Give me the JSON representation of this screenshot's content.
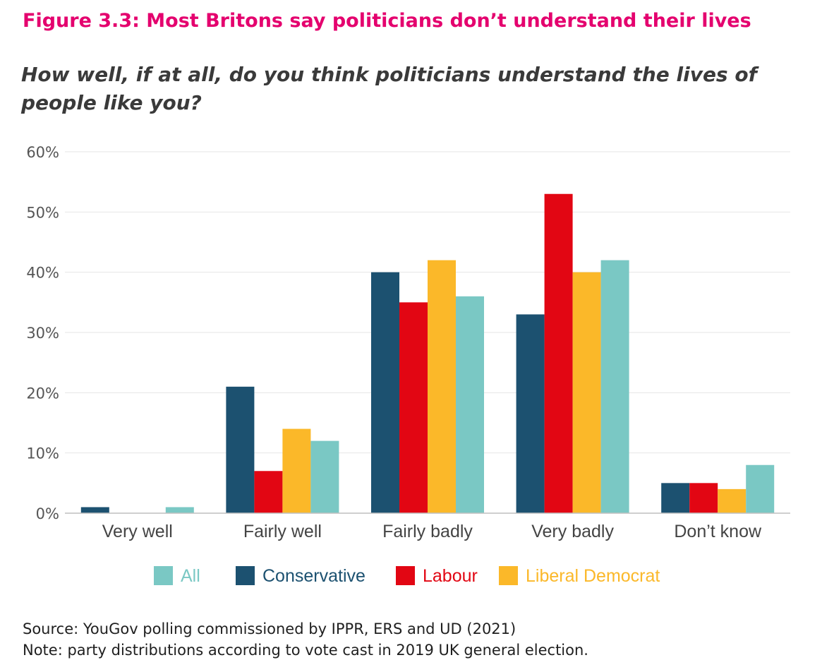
{
  "figure_title": "Figure 3.3: Most Britons say politicians don’t understand their lives",
  "question": "How well, if at all, do you think politicians understand the lives of people like you?",
  "source_line": "Source: YouGov polling commissioned by IPPR, ERS and UD (2021)",
  "note_line": "Note: party distributions according to vote cast in 2019 UK general election.",
  "colors": {
    "conservative": "#1c5170",
    "labour": "#e20613",
    "liberal_democrat": "#fbb829",
    "all": "#7ac8c4",
    "title": "#e4006e",
    "grid": "#e6e6e6"
  },
  "chart_data": {
    "type": "bar",
    "title": "",
    "xlabel": "",
    "ylabel": "",
    "categories": [
      "Very well",
      "Fairly well",
      "Fairly badly",
      "Very badly",
      "Don’t know"
    ],
    "series": [
      {
        "name": "Conservative",
        "color": "#1c5170",
        "values": [
          1,
          21,
          40,
          33,
          5
        ]
      },
      {
        "name": "Labour",
        "color": "#e20613",
        "values": [
          0,
          7,
          35,
          53,
          5
        ]
      },
      {
        "name": "Liberal Democrat",
        "color": "#fbb829",
        "values": [
          0,
          14,
          42,
          40,
          4
        ]
      },
      {
        "name": "All",
        "color": "#7ac8c4",
        "values": [
          1,
          12,
          36,
          42,
          8
        ]
      }
    ],
    "ylim": [
      0,
      60
    ],
    "yticks": [
      "0%",
      "10%",
      "20%",
      "30%",
      "40%",
      "50%",
      "60%"
    ],
    "legend": [
      {
        "name": "All",
        "color": "#7ac8c4"
      },
      {
        "name": "Conservative",
        "color": "#1c5170"
      },
      {
        "name": "Labour",
        "color": "#e20613"
      },
      {
        "name": "Liberal Democrat",
        "color": "#fbb829"
      }
    ],
    "legend_position": "bottom",
    "grid": true
  }
}
